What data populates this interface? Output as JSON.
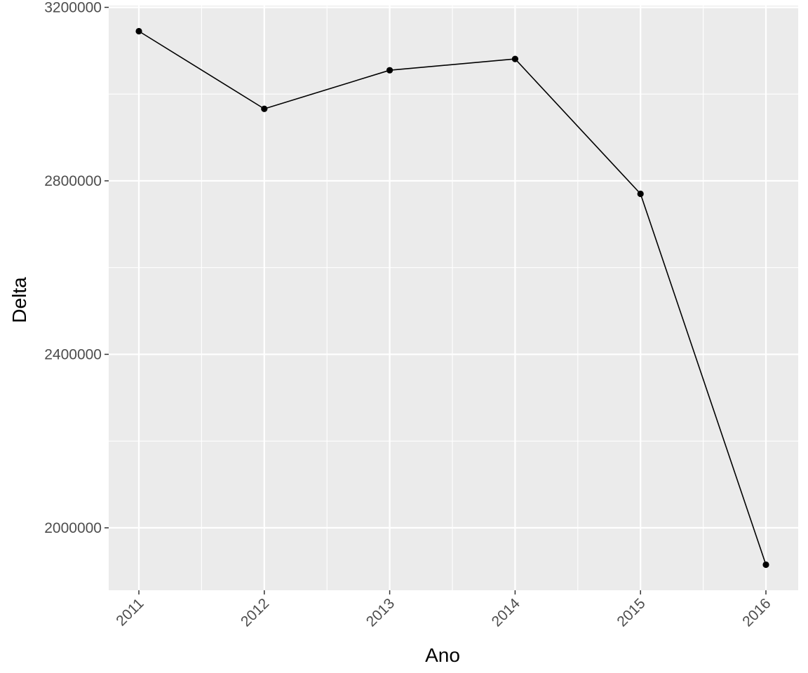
{
  "chart_data": {
    "type": "line",
    "title": "",
    "xlabel": "Ano",
    "ylabel": "Delta",
    "categories": [
      "2011",
      "2012",
      "2013",
      "2014",
      "2015",
      "2016"
    ],
    "series": [
      {
        "values": [
          3145000,
          2966000,
          3055000,
          3081000,
          2770000,
          1915000
        ]
      }
    ],
    "ylim": [
      1856000,
      3204000
    ],
    "yticks": [
      2000000,
      2400000,
      2800000,
      3200000
    ],
    "ytick_labels": [
      "2000000",
      "2400000",
      "2800000",
      "3200000"
    ],
    "grid": true,
    "x_tick_rotation": "45 degrees",
    "colors": {
      "panel_background": "#EBEBEB",
      "grid": "#FFFFFF",
      "line": "#000000",
      "points": "#000000",
      "tick_text": "#4D4D4D"
    }
  }
}
